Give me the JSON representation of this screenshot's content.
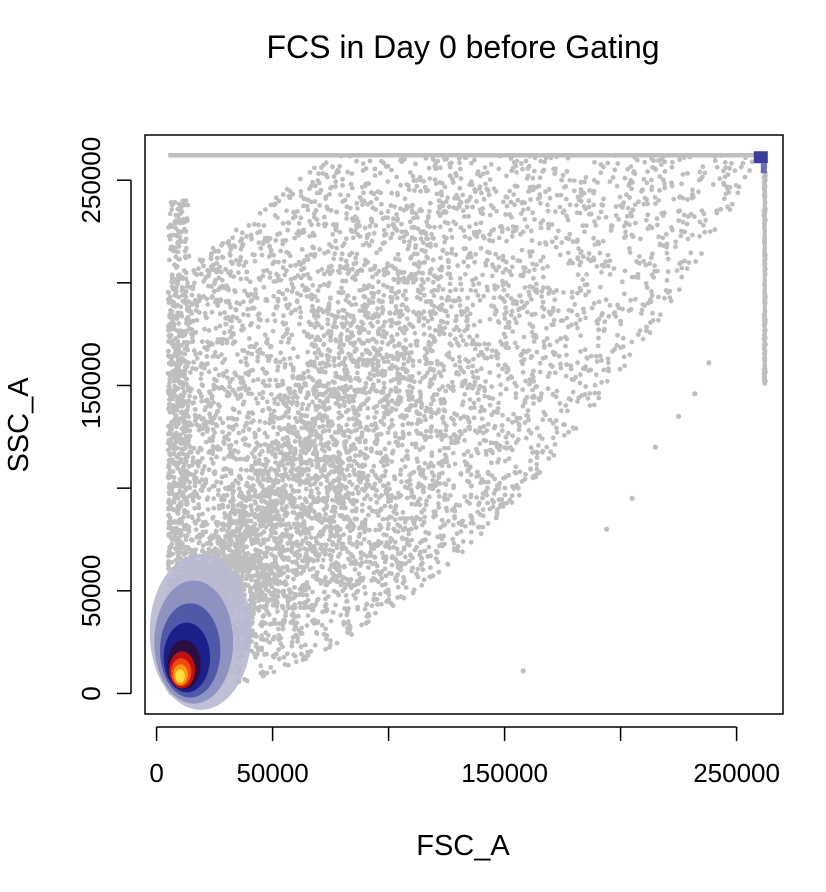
{
  "chart_data": {
    "type": "scatter",
    "title": "FCS in Day 0 before Gating",
    "xlabel": "FSC_A",
    "ylabel": "SSC_A",
    "xlim": [
      -5000,
      270000
    ],
    "ylim": [
      -10000,
      272000
    ],
    "x_ticks": [
      0,
      50000,
      100000,
      150000,
      200000,
      250000
    ],
    "x_tick_labels": [
      "0",
      "50000",
      "",
      "150000",
      "",
      "250000"
    ],
    "y_ticks": [
      0,
      50000,
      100000,
      150000,
      200000,
      250000
    ],
    "y_tick_labels": [
      "0",
      "50000",
      "",
      "150000",
      "",
      "250000"
    ],
    "grid": false,
    "legend": "none",
    "point_color": "#bebebe",
    "density_colors": [
      "#b8b8d0",
      "#8a8ebf",
      "#5058a8",
      "#1c1f8a",
      "#2a1040",
      "#c21010",
      "#f04a10",
      "#ff9a10",
      "#ffe040"
    ],
    "saturation_line": {
      "y": 262143,
      "x_start": 5000,
      "x_end": 262143
    },
    "saturation_cluster": {
      "x": 262143,
      "y": 262143
    },
    "density_peak": {
      "x": 10000,
      "y": 8000
    },
    "outlier_points": [
      {
        "x": 158000,
        "y": 11000
      },
      {
        "x": 232000,
        "y": 146000
      },
      {
        "x": 238000,
        "y": 161000
      },
      {
        "x": 225000,
        "y": 135000
      },
      {
        "x": 215000,
        "y": 120000
      },
      {
        "x": 205000,
        "y": 95000
      },
      {
        "x": 194000,
        "y": 80000
      }
    ]
  }
}
